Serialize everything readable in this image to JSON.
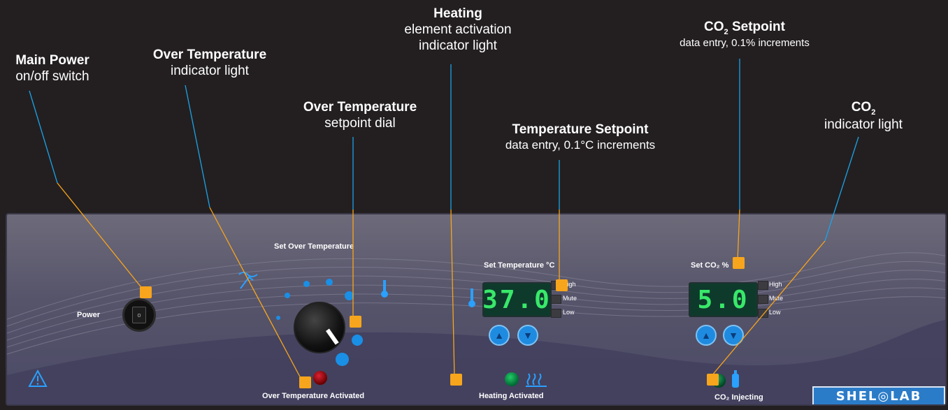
{
  "callouts": {
    "main_power": {
      "title": "Main Power",
      "desc": "on/off switch"
    },
    "over_temp_light": {
      "title": "Over Temperature",
      "desc": "indicator light"
    },
    "over_temp_dial": {
      "title": "Over Temperature",
      "desc": "setpoint dial"
    },
    "heating": {
      "title": "Heating",
      "desc1": "element activation",
      "desc2": "indicator light"
    },
    "temp_setpoint": {
      "title": "Temperature Setpoint",
      "desc": "data entry, 0.1°C increments"
    },
    "co2_setpoint": {
      "title": "CO",
      "sub": "2",
      "title_rest": " Setpoint",
      "desc": "data entry, 0.1% increments"
    },
    "co2_light": {
      "title": "CO",
      "sub": "2",
      "desc": "indicator light"
    }
  },
  "panel": {
    "power_label": "Power",
    "set_over_temp_label": "Set Over Temperature",
    "set_temp_label": "Set Temperature °C",
    "set_co2_label": "Set CO₂ %",
    "temp_display": "37.0",
    "co2_display": "5.0",
    "alarm_levels": [
      "High",
      "Mute",
      "Low"
    ],
    "over_temp_activated_label": "Over Temperature Activated",
    "heating_activated_label": "Heating Activated",
    "co2_injecting_label": "CO₂ Injecting",
    "brand": "SHEL◎LAB",
    "up_glyph": "▲",
    "down_glyph": "▼"
  },
  "colors": {
    "accent_marker": "#f7a51c",
    "leader_line": "#1aa3e8",
    "lcd_text": "#39e86a",
    "button_blue": "#1f8be0"
  }
}
